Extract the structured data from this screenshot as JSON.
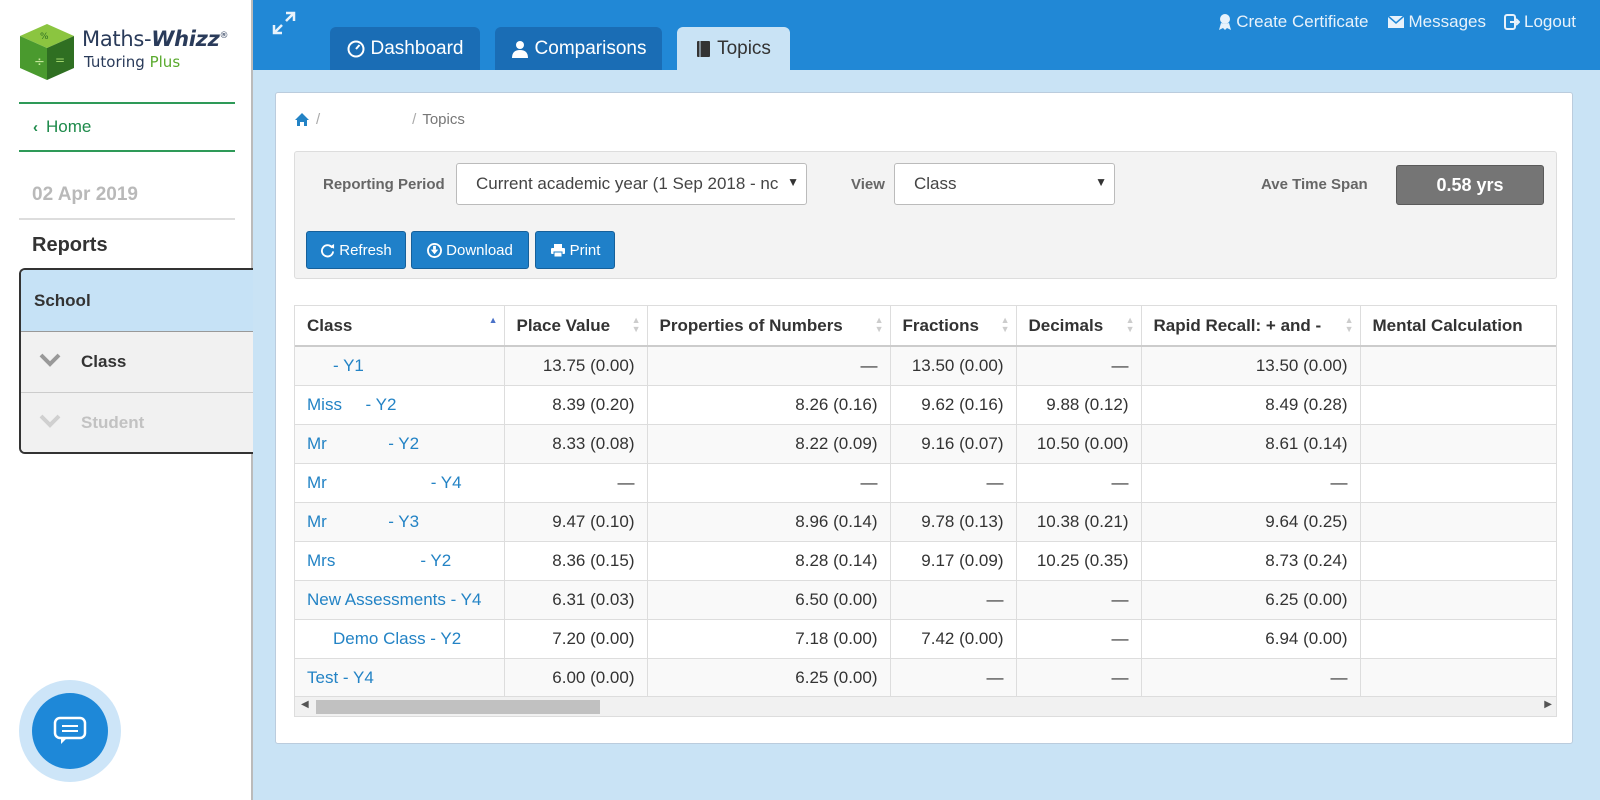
{
  "logo": {
    "name_main": "Maths-",
    "name_bold": "Whizz",
    "reg": "®",
    "sub_main": "Tutoring ",
    "sub_accent": "Plus"
  },
  "sidebar": {
    "home_label": "Home",
    "date": "02 Apr 2019",
    "reports_title": "Reports",
    "menu": {
      "school": "School",
      "class": "Class",
      "student": "Student"
    }
  },
  "tabs": [
    {
      "label": "Dashboard"
    },
    {
      "label": "Comparisons"
    },
    {
      "label": "Topics"
    }
  ],
  "top_links": {
    "certificate": "Create Certificate",
    "messages": "Messages",
    "logout": "Logout"
  },
  "breadcrumb": {
    "current": "Topics"
  },
  "filters": {
    "period_label": "Reporting Period",
    "period_value": "Current academic year (1 Sep 2018 - nc",
    "view_label": "View",
    "view_value": "Class",
    "timespan_label": "Ave Time Span",
    "timespan_value": "0.58 yrs"
  },
  "buttons": {
    "refresh": "Refresh",
    "download": "Download",
    "print": "Print"
  },
  "table": {
    "headers": [
      "Class",
      "Place Value",
      "Properties of Numbers",
      "Fractions",
      "Decimals",
      "Rapid Recall: + and -",
      "Mental Calculation"
    ],
    "rows": [
      [
        "- Y1",
        "13.75 (0.00)",
        "—",
        "13.50 (0.00)",
        "—",
        "13.50 (0.00)",
        ""
      ],
      [
        "Miss     - Y2",
        "8.39 (0.20)",
        "8.26 (0.16)",
        "9.62 (0.16)",
        "9.88 (0.12)",
        "8.49 (0.28)",
        ""
      ],
      [
        "Mr             - Y2",
        "8.33 (0.08)",
        "8.22 (0.09)",
        "9.16 (0.07)",
        "10.50 (0.00)",
        "8.61 (0.14)",
        ""
      ],
      [
        "Mr                      - Y4",
        "—",
        "—",
        "—",
        "—",
        "—",
        ""
      ],
      [
        "Mr             - Y3",
        "9.47 (0.10)",
        "8.96 (0.14)",
        "9.78 (0.13)",
        "10.38 (0.21)",
        "9.64 (0.25)",
        ""
      ],
      [
        "Mrs                  - Y2",
        "8.36 (0.15)",
        "8.28 (0.14)",
        "9.17 (0.09)",
        "10.25 (0.35)",
        "8.73 (0.24)",
        ""
      ],
      [
        "New Assessments - Y4",
        "6.31 (0.03)",
        "6.50 (0.00)",
        "—",
        "—",
        "6.25 (0.00)",
        ""
      ],
      [
        "Demo Class - Y2",
        "7.20 (0.00)",
        "7.18 (0.00)",
        "7.42 (0.00)",
        "—",
        "6.94 (0.00)",
        ""
      ],
      [
        "Test - Y4",
        "6.00 (0.00)",
        "6.25 (0.00)",
        "—",
        "—",
        "—",
        ""
      ]
    ]
  },
  "colors": {
    "topbar": "#2188d6",
    "link": "#2383c5",
    "accent_green": "#2e9a58"
  }
}
